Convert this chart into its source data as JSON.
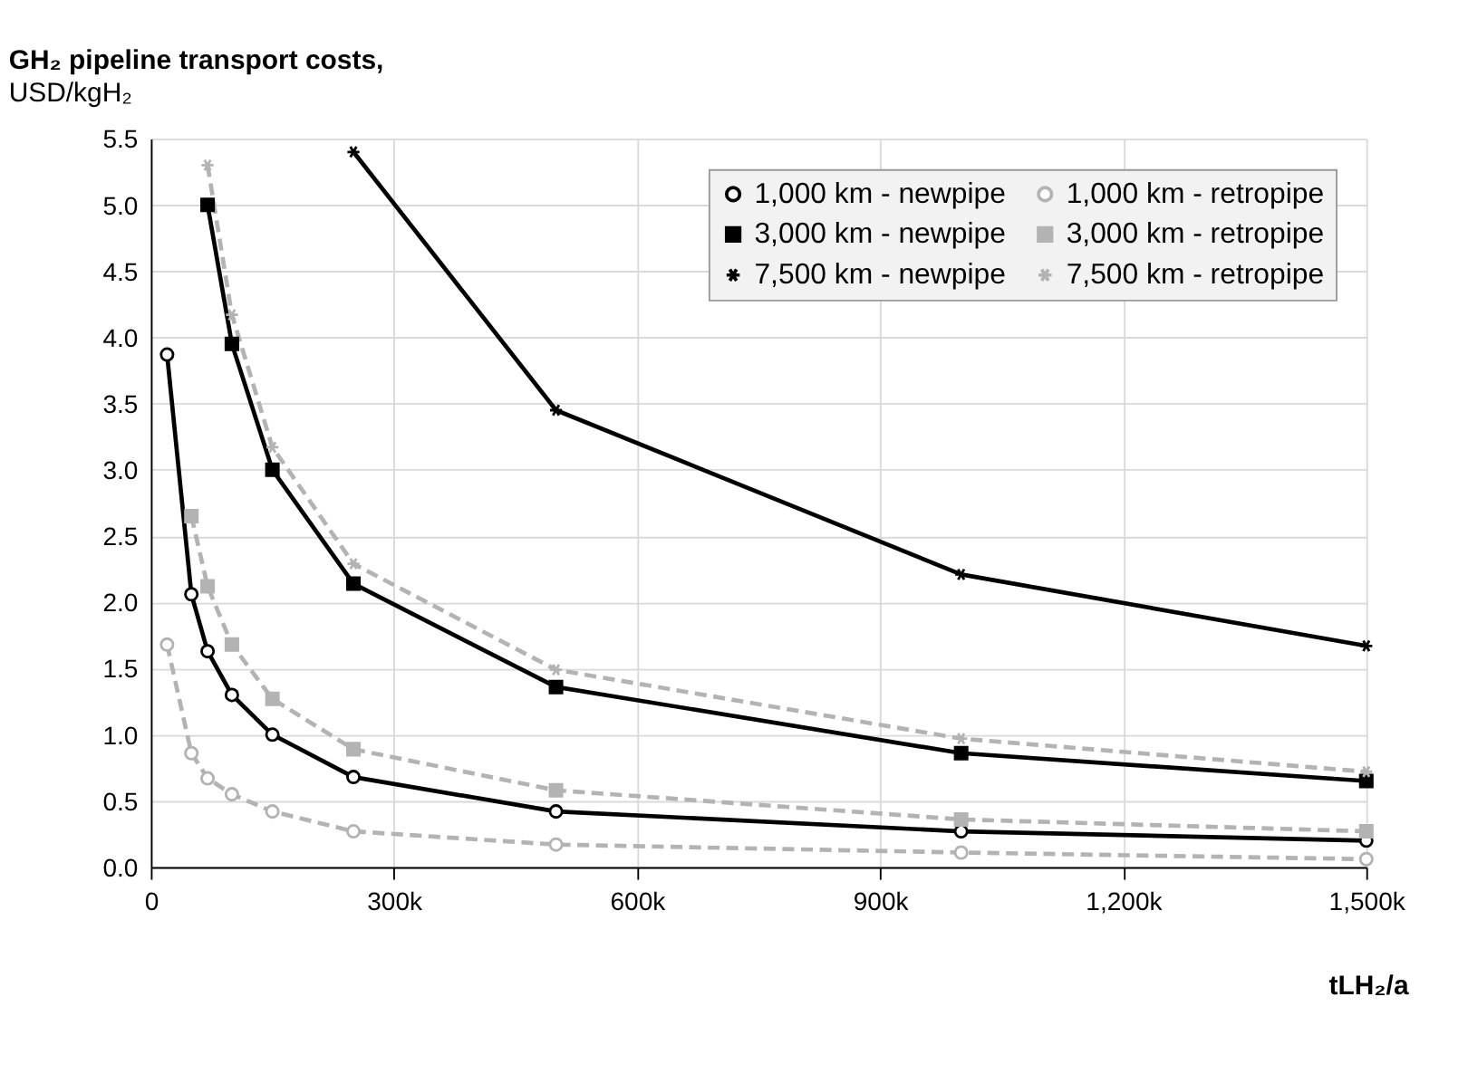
{
  "chart_data": {
    "type": "line",
    "title": "GH₂ pipeline transport costs,",
    "subtitle": "USD/kgH₂",
    "xlabel": "tLH₂/a",
    "xlim": [
      0,
      1500000
    ],
    "xticks": [
      0,
      {
        "value": 300000,
        "label": "300k"
      },
      {
        "value": 600000,
        "label": "600k"
      },
      {
        "value": 900000,
        "label": "900k"
      },
      {
        "value": 1200000,
        "label": "1,200k"
      },
      {
        "value": 1500000,
        "label": "1,500k"
      }
    ],
    "ylim": [
      0,
      5.5
    ],
    "yticks": [
      {
        "value": 0,
        "label": "0.0"
      },
      0.5,
      {
        "value": 1,
        "label": "1.0"
      },
      1.5,
      {
        "value": 2,
        "label": "2.0"
      },
      2.5,
      {
        "value": 3,
        "label": "3.0"
      },
      3.5,
      {
        "value": 4,
        "label": "4.0"
      },
      4.5,
      {
        "value": 5,
        "label": "5.0"
      },
      5.5
    ],
    "grid": true,
    "legend": "top right",
    "series": [
      {
        "name": "1,000 km - newpipe",
        "color": "#000000",
        "marker": "circle",
        "line_style": "solid",
        "x": [
          20000,
          50000,
          70000,
          100000,
          150000,
          250000,
          500000,
          1000000,
          1500000
        ],
        "values": [
          3.87,
          2.06,
          1.63,
          1.3,
          1.0,
          0.68,
          0.42,
          0.27,
          0.2
        ]
      },
      {
        "name": "1,000 km - retropipe",
        "color": "#b3b3b3",
        "marker": "circle",
        "line_style": "dashed",
        "x": [
          20000,
          50000,
          70000,
          100000,
          150000,
          250000,
          500000,
          1000000,
          1500000
        ],
        "values": [
          1.68,
          0.86,
          0.67,
          0.55,
          0.42,
          0.27,
          0.17,
          0.11,
          0.06
        ]
      },
      {
        "name": "3,000 km - newpipe",
        "color": "#000000",
        "marker": "square",
        "line_style": "solid",
        "x": [
          70000,
          100000,
          150000,
          250000,
          500000,
          1000000,
          1500000
        ],
        "values": [
          5.0,
          3.95,
          3.0,
          2.14,
          1.36,
          0.86,
          0.65
        ]
      },
      {
        "name": "3,000 km - retropipe",
        "color": "#b3b3b3",
        "marker": "square",
        "line_style": "dashed",
        "x": [
          50000,
          70000,
          100000,
          150000,
          250000,
          500000,
          1000000,
          1500000
        ],
        "values": [
          2.65,
          2.12,
          1.68,
          1.27,
          0.89,
          0.58,
          0.36,
          0.27
        ]
      },
      {
        "name": "7,500 km - newpipe",
        "color": "#000000",
        "marker": "cross",
        "line_style": "solid",
        "x": [
          250000,
          500000,
          1000000,
          1500000
        ],
        "values": [
          5.4,
          3.45,
          2.21,
          1.67
        ]
      },
      {
        "name": "7,500 km - retropipe",
        "color": "#b3b3b3",
        "marker": "cross",
        "line_style": "dashed",
        "x": [
          70000,
          100000,
          150000,
          250000,
          500000,
          1000000,
          1500000
        ],
        "values": [
          5.3,
          4.17,
          3.17,
          2.29,
          1.49,
          0.97,
          0.72
        ]
      }
    ]
  }
}
